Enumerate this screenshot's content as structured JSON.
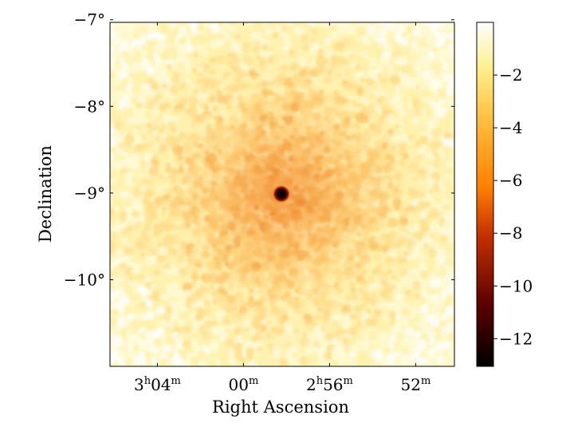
{
  "chart_data": {
    "type": "heatmap",
    "title": "",
    "xlabel": "Right Ascension",
    "ylabel": "Declination",
    "x_ticks": [
      {
        "label": "3h04m",
        "main": "3",
        "sup1": "h",
        "num": "04",
        "sup2": "m",
        "ra_deg": 46.0
      },
      {
        "label": "00m",
        "main": "00",
        "sup1": "m",
        "num": "",
        "sup2": "",
        "ra_deg": 45.0
      },
      {
        "label": "2h56m",
        "main": "2",
        "sup1": "h",
        "num": "56",
        "sup2": "m",
        "ra_deg": 44.0
      },
      {
        "label": "52m",
        "main": "52",
        "sup1": "m",
        "num": "",
        "sup2": "",
        "ra_deg": 43.0
      }
    ],
    "x_range_deg": [
      46.55,
      42.55
    ],
    "y_ticks": [
      {
        "label": "−7°",
        "dec": -7
      },
      {
        "label": "−8°",
        "dec": -8
      },
      {
        "label": "−9°",
        "dec": -9
      },
      {
        "label": "−10°",
        "dec": -10
      }
    ],
    "y_range_deg": [
      -11.0,
      -7.03
    ],
    "colorbar": {
      "colormap": "afmhot",
      "range": [
        -13.05,
        0.0
      ],
      "ticks": [
        -2,
        -4,
        -6,
        -8,
        -10,
        -12
      ],
      "tick_labels": [
        "−2",
        "−4",
        "−6",
        "−8",
        "−10",
        "−12"
      ]
    },
    "features": [
      {
        "name": "central source",
        "ra_deg": 44.5,
        "dec_deg": -8.95,
        "value": -13.0
      },
      {
        "name": "background",
        "value_range": [
          -3.5,
          -0.5
        ]
      }
    ],
    "grid": false
  }
}
